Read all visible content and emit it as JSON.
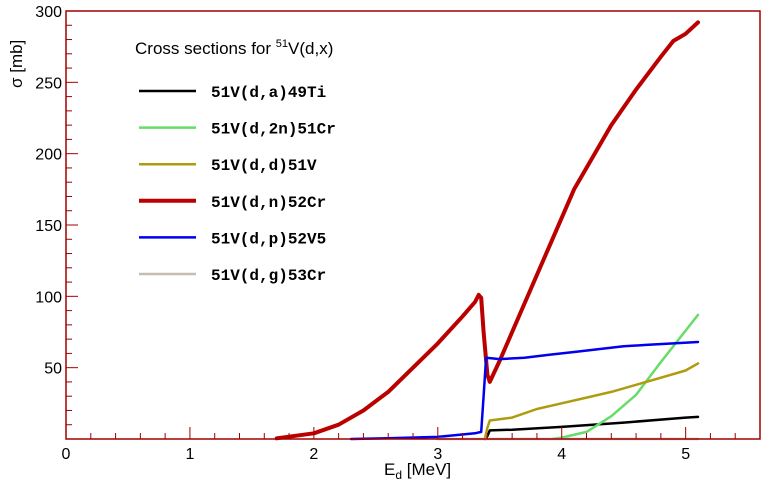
{
  "chart_data": {
    "type": "line",
    "title": "",
    "legend_title": {
      "prefix": "Cross sections for ",
      "superscript": "51",
      "suffix": "V(d,x)"
    },
    "xlabel": {
      "main": "E",
      "sub": "d",
      "unit": " [MeV]"
    },
    "ylabel": "σ [mb]",
    "xlim": [
      0,
      5.6
    ],
    "ylim": [
      0,
      300
    ],
    "x_ticks": [
      0,
      1,
      2,
      3,
      4,
      5
    ],
    "y_ticks": [
      50,
      100,
      150,
      200,
      250,
      300
    ],
    "legend_position": "top-left",
    "series": [
      {
        "name": "51V(d,a)49Ti",
        "color": "#000000",
        "width": 2.5,
        "points": [
          [
            3.38,
            0
          ],
          [
            3.4,
            2
          ],
          [
            3.42,
            6
          ],
          [
            3.6,
            6.5
          ],
          [
            4.0,
            8.5
          ],
          [
            4.5,
            11.5
          ],
          [
            5.0,
            15
          ],
          [
            5.1,
            15.5
          ]
        ]
      },
      {
        "name": "51V(d,2n)51Cr",
        "color": "#66dd66",
        "width": 2.5,
        "points": [
          [
            3.92,
            0
          ],
          [
            4.0,
            1
          ],
          [
            4.2,
            5
          ],
          [
            4.4,
            16
          ],
          [
            4.6,
            31
          ],
          [
            4.8,
            54
          ],
          [
            5.0,
            76
          ],
          [
            5.1,
            87
          ]
        ]
      },
      {
        "name": "51V(d,d)51V",
        "color": "#b09a10",
        "width": 2.5,
        "points": [
          [
            3.38,
            0
          ],
          [
            3.4,
            8
          ],
          [
            3.42,
            13
          ],
          [
            3.6,
            15
          ],
          [
            3.8,
            21
          ],
          [
            4.0,
            25
          ],
          [
            4.2,
            29
          ],
          [
            4.4,
            33
          ],
          [
            4.6,
            38
          ],
          [
            4.8,
            43
          ],
          [
            5.0,
            48
          ],
          [
            5.1,
            53
          ]
        ]
      },
      {
        "name": "51V(d,n)52Cr",
        "color": "#bb0000",
        "width": 4,
        "points": [
          [
            1.7,
            0.5
          ],
          [
            2.0,
            4
          ],
          [
            2.2,
            10
          ],
          [
            2.4,
            20
          ],
          [
            2.6,
            33
          ],
          [
            2.8,
            50
          ],
          [
            3.0,
            67
          ],
          [
            3.2,
            86
          ],
          [
            3.3,
            96
          ],
          [
            3.33,
            101
          ],
          [
            3.35,
            99
          ],
          [
            3.37,
            75
          ],
          [
            3.4,
            45
          ],
          [
            3.42,
            40
          ],
          [
            3.5,
            55
          ],
          [
            3.7,
            95
          ],
          [
            3.9,
            135
          ],
          [
            4.1,
            175
          ],
          [
            4.4,
            220
          ],
          [
            4.6,
            245
          ],
          [
            4.8,
            268
          ],
          [
            4.9,
            279
          ],
          [
            5.0,
            284
          ],
          [
            5.1,
            292
          ]
        ]
      },
      {
        "name": "51V(d,p)52V5",
        "color": "#0000ee",
        "width": 2.5,
        "points": [
          [
            2.3,
            0
          ],
          [
            2.6,
            0.5
          ],
          [
            3.0,
            1.5
          ],
          [
            3.3,
            4
          ],
          [
            3.35,
            5
          ],
          [
            3.37,
            30
          ],
          [
            3.39,
            57
          ],
          [
            3.5,
            56
          ],
          [
            3.7,
            57
          ],
          [
            3.9,
            59
          ],
          [
            4.1,
            61
          ],
          [
            4.3,
            63
          ],
          [
            4.5,
            65
          ],
          [
            4.7,
            66
          ],
          [
            4.9,
            67
          ],
          [
            5.1,
            68
          ]
        ]
      },
      {
        "name": "51V(d,g)53Cr",
        "color": "#c8bcb0",
        "width": 2.5,
        "points": [
          [
            3.0,
            0
          ],
          [
            5.1,
            0
          ]
        ]
      }
    ]
  }
}
